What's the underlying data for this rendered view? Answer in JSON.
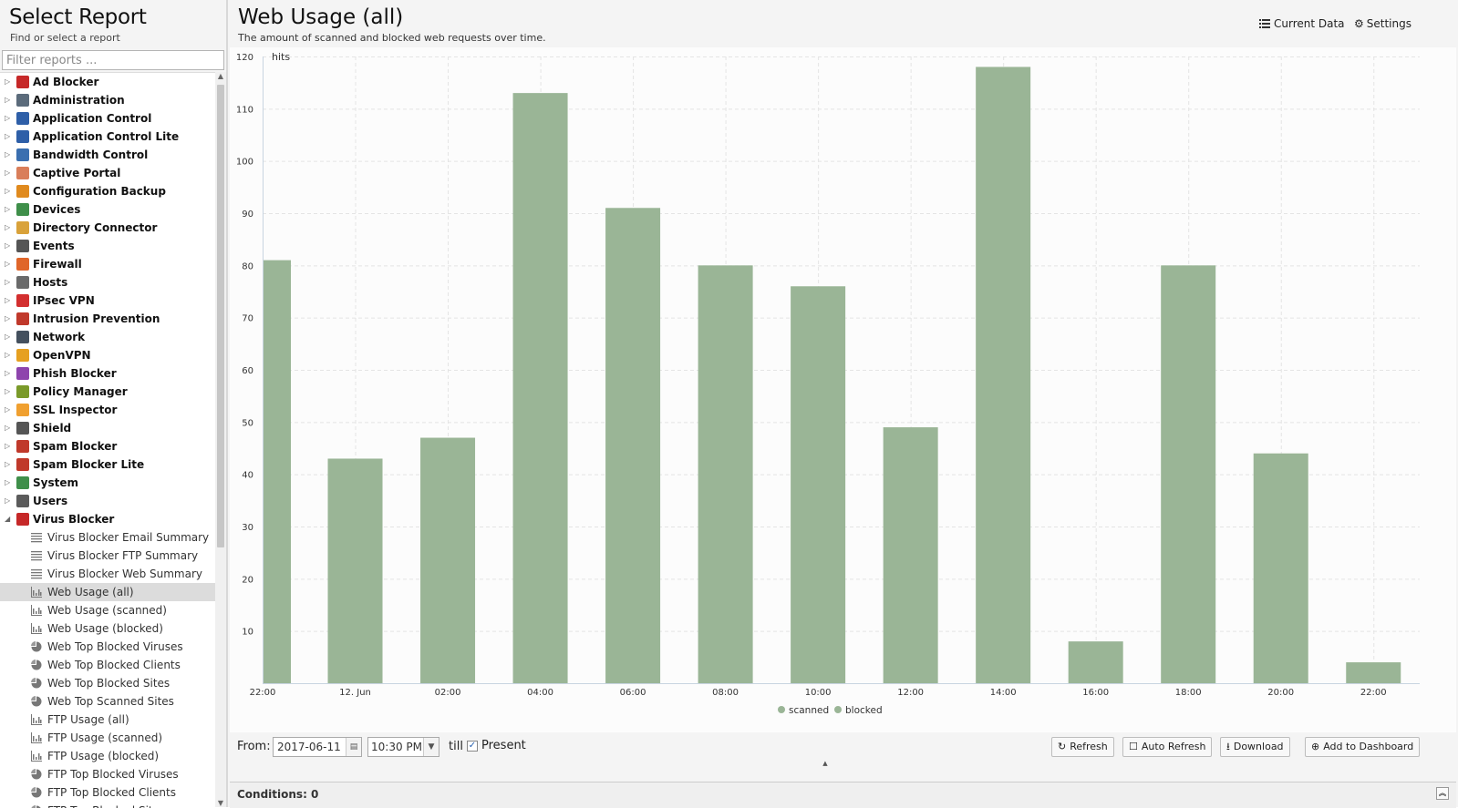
{
  "left": {
    "title": "Select Report",
    "subtitle": "Find or select a report",
    "filter_placeholder": "Filter reports ..."
  },
  "tree": [
    {
      "label": "Ad Blocker",
      "type": "cat",
      "icon": "ad-blocker-icon",
      "color": "#c62828"
    },
    {
      "label": "Administration",
      "type": "cat",
      "icon": "administration-icon",
      "color": "#5b6b7b"
    },
    {
      "label": "Application Control",
      "type": "cat",
      "icon": "application-control-icon",
      "color": "#2e5fa8"
    },
    {
      "label": "Application Control Lite",
      "type": "cat",
      "icon": "application-control-lite-icon",
      "color": "#2e5fa8"
    },
    {
      "label": "Bandwidth Control",
      "type": "cat",
      "icon": "bandwidth-control-icon",
      "color": "#3a6fb0"
    },
    {
      "label": "Captive Portal",
      "type": "cat",
      "icon": "captive-portal-icon",
      "color": "#d97e5a"
    },
    {
      "label": "Configuration Backup",
      "type": "cat",
      "icon": "configuration-backup-icon",
      "color": "#e08a1e"
    },
    {
      "label": "Devices",
      "type": "cat",
      "icon": "devices-icon",
      "color": "#3f8f4a"
    },
    {
      "label": "Directory Connector",
      "type": "cat",
      "icon": "directory-connector-icon",
      "color": "#d9a23a"
    },
    {
      "label": "Events",
      "type": "cat",
      "icon": "events-icon",
      "color": "#555555"
    },
    {
      "label": "Firewall",
      "type": "cat",
      "icon": "firewall-icon",
      "color": "#e0662a"
    },
    {
      "label": "Hosts",
      "type": "cat",
      "icon": "hosts-icon",
      "color": "#6a6a6a"
    },
    {
      "label": "IPsec VPN",
      "type": "cat",
      "icon": "ipsec-vpn-icon",
      "color": "#d32f2f"
    },
    {
      "label": "Intrusion Prevention",
      "type": "cat",
      "icon": "intrusion-prevention-icon",
      "color": "#c0392b"
    },
    {
      "label": "Network",
      "type": "cat",
      "icon": "network-icon",
      "color": "#44505e"
    },
    {
      "label": "OpenVPN",
      "type": "cat",
      "icon": "openvpn-icon",
      "color": "#e6a020"
    },
    {
      "label": "Phish Blocker",
      "type": "cat",
      "icon": "phish-blocker-icon",
      "color": "#8e44ad"
    },
    {
      "label": "Policy Manager",
      "type": "cat",
      "icon": "policy-manager-icon",
      "color": "#7a9a2a"
    },
    {
      "label": "SSL Inspector",
      "type": "cat",
      "icon": "ssl-inspector-icon",
      "color": "#f0a030"
    },
    {
      "label": "Shield",
      "type": "cat",
      "icon": "shield-icon",
      "color": "#555555"
    },
    {
      "label": "Spam Blocker",
      "type": "cat",
      "icon": "spam-blocker-icon",
      "color": "#c0392b"
    },
    {
      "label": "Spam Blocker Lite",
      "type": "cat",
      "icon": "spam-blocker-lite-icon",
      "color": "#c0392b"
    },
    {
      "label": "System",
      "type": "cat",
      "icon": "system-icon",
      "color": "#3f8f4a"
    },
    {
      "label": "Users",
      "type": "cat",
      "icon": "users-icon",
      "color": "#5b5b5b"
    },
    {
      "label": "Virus Blocker",
      "type": "cat",
      "expanded": true,
      "icon": "virus-blocker-icon",
      "color": "#c62828"
    },
    {
      "label": "Virus Blocker Email Summary",
      "type": "child",
      "icon": "text-report-icon"
    },
    {
      "label": "Virus Blocker FTP Summary",
      "type": "child",
      "icon": "text-report-icon"
    },
    {
      "label": "Virus Blocker Web Summary",
      "type": "child",
      "icon": "text-report-icon"
    },
    {
      "label": "Web Usage (all)",
      "type": "child",
      "icon": "bar-chart-icon",
      "selected": true
    },
    {
      "label": "Web Usage (scanned)",
      "type": "child",
      "icon": "bar-chart-icon"
    },
    {
      "label": "Web Usage (blocked)",
      "type": "child",
      "icon": "bar-chart-icon"
    },
    {
      "label": "Web Top Blocked Viruses",
      "type": "child",
      "icon": "pie-chart-icon"
    },
    {
      "label": "Web Top Blocked Clients",
      "type": "child",
      "icon": "pie-chart-icon"
    },
    {
      "label": "Web Top Blocked Sites",
      "type": "child",
      "icon": "pie-chart-icon"
    },
    {
      "label": "Web Top Scanned Sites",
      "type": "child",
      "icon": "pie-chart-icon"
    },
    {
      "label": "FTP Usage (all)",
      "type": "child",
      "icon": "bar-chart-icon"
    },
    {
      "label": "FTP Usage (scanned)",
      "type": "child",
      "icon": "bar-chart-icon"
    },
    {
      "label": "FTP Usage (blocked)",
      "type": "child",
      "icon": "bar-chart-icon"
    },
    {
      "label": "FTP Top Blocked Viruses",
      "type": "child",
      "icon": "pie-chart-icon"
    },
    {
      "label": "FTP Top Blocked Clients",
      "type": "child",
      "icon": "pie-chart-icon"
    },
    {
      "label": "FTP Top Blocked Sites",
      "type": "child",
      "icon": "pie-chart-icon"
    }
  ],
  "report": {
    "title": "Web Usage (all)",
    "description": "The amount of scanned and blocked web requests over time.",
    "current_data_label": "Current Data",
    "settings_label": "Settings"
  },
  "chart_data": {
    "type": "bar",
    "title": "",
    "ylabel": "hits",
    "xlabel": "",
    "ylim": [
      0,
      120
    ],
    "yticks": [
      10,
      20,
      30,
      40,
      50,
      60,
      70,
      80,
      90,
      100,
      110,
      120
    ],
    "categories": [
      "22:00",
      "12. Jun",
      "02:00",
      "04:00",
      "06:00",
      "08:00",
      "10:00",
      "12:00",
      "14:00",
      "16:00",
      "18:00",
      "20:00",
      "22:00"
    ],
    "series": [
      {
        "name": "scanned",
        "color": "#9ab596",
        "values": [
          81,
          43,
          47,
          113,
          91,
          80,
          76,
          49,
          118,
          8,
          80,
          44,
          4
        ]
      },
      {
        "name": "blocked",
        "color": "#9ab596",
        "values": [
          0,
          0,
          0,
          0,
          0,
          0,
          0,
          0,
          0,
          0,
          0,
          0,
          0
        ]
      }
    ],
    "legend": "bottom-center",
    "grid": true
  },
  "toolbar": {
    "from_label": "From:",
    "date_value": "2017-06-11",
    "time_value": "10:30 PM",
    "till_label": "till",
    "present_label": "Present",
    "present_checked": true,
    "refresh_label": "Refresh",
    "auto_refresh_label": "Auto Refresh",
    "download_label": "Download",
    "add_dashboard_label": "Add to Dashboard"
  },
  "conditions": {
    "label": "Conditions: 0"
  }
}
